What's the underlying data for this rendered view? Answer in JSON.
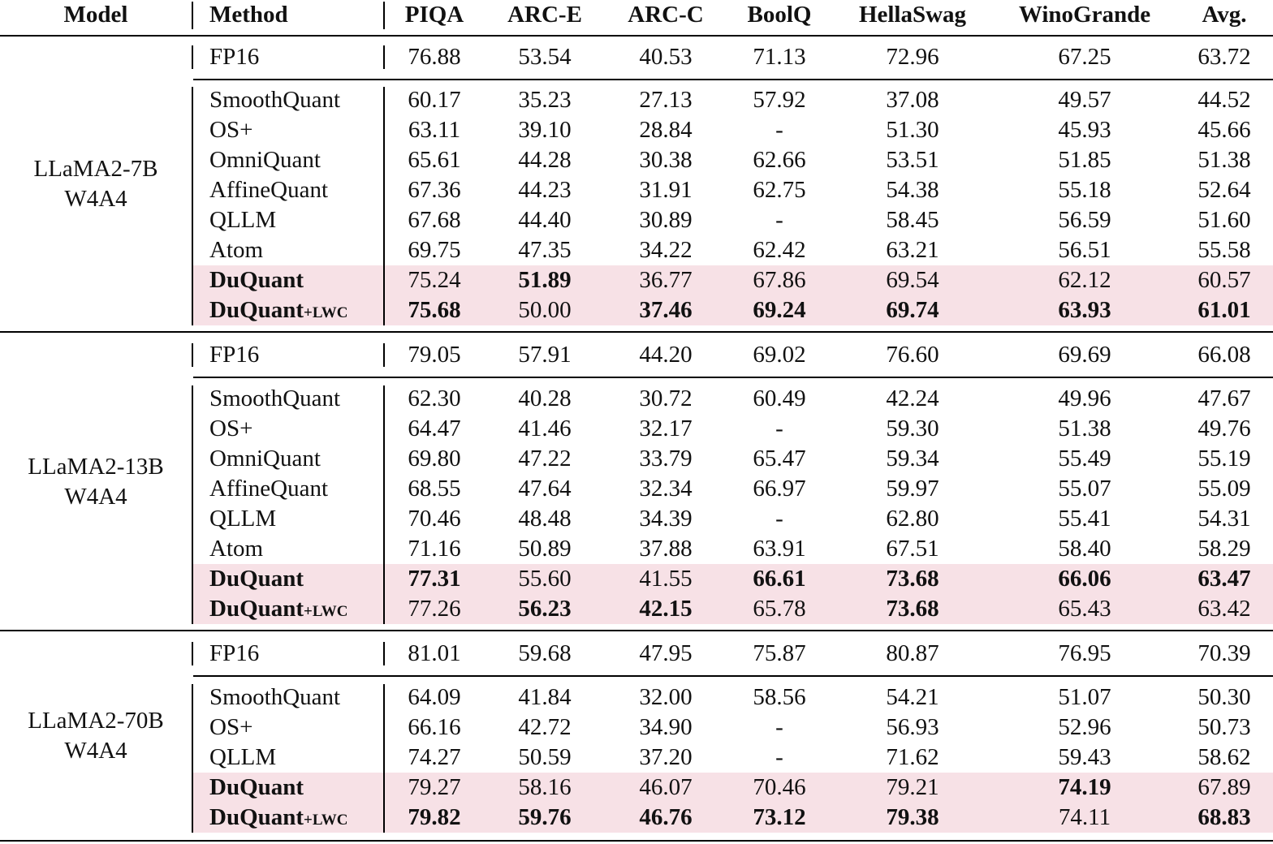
{
  "headers": [
    "Model",
    "Method",
    "PIQA",
    "ARC-E",
    "ARC-C",
    "BoolQ",
    "HellaSwag",
    "WinoGrande",
    "Avg."
  ],
  "groups": [
    {
      "model": "LLaMA2-7B",
      "bits": "W4A4",
      "fp16": {
        "method": "FP16",
        "values": [
          "76.88",
          "53.54",
          "40.53",
          "71.13",
          "72.96",
          "67.25",
          "63.72"
        ]
      },
      "rows": [
        {
          "method": "SmoothQuant",
          "values": [
            "60.17",
            "35.23",
            "27.13",
            "57.92",
            "37.08",
            "49.57",
            "44.52"
          ],
          "bold": []
        },
        {
          "method": "OS+",
          "values": [
            "63.11",
            "39.10",
            "28.84",
            "-",
            "51.30",
            "45.93",
            "45.66"
          ],
          "bold": []
        },
        {
          "method": "OmniQuant",
          "values": [
            "65.61",
            "44.28",
            "30.38",
            "62.66",
            "53.51",
            "51.85",
            "51.38"
          ],
          "bold": []
        },
        {
          "method": "AffineQuant",
          "values": [
            "67.36",
            "44.23",
            "31.91",
            "62.75",
            "54.38",
            "55.18",
            "52.64"
          ],
          "bold": []
        },
        {
          "method": "QLLM",
          "values": [
            "67.68",
            "44.40",
            "30.89",
            "-",
            "58.45",
            "56.59",
            "51.60"
          ],
          "bold": []
        },
        {
          "method": "Atom",
          "values": [
            "69.75",
            "47.35",
            "34.22",
            "62.42",
            "63.21",
            "56.51",
            "55.58"
          ],
          "bold": []
        },
        {
          "method": "DuQuant",
          "values": [
            "75.24",
            "51.89",
            "36.77",
            "67.86",
            "69.54",
            "62.12",
            "60.57"
          ],
          "bold": [
            1
          ],
          "highlight": true
        },
        {
          "method": "DuQuant",
          "sub": "+LWC",
          "values": [
            "75.68",
            "50.00",
            "37.46",
            "69.24",
            "69.74",
            "63.93",
            "61.01"
          ],
          "bold": [
            0,
            2,
            3,
            4,
            5,
            6
          ],
          "highlight": true
        }
      ]
    },
    {
      "model": "LLaMA2-13B",
      "bits": "W4A4",
      "fp16": {
        "method": "FP16",
        "values": [
          "79.05",
          "57.91",
          "44.20",
          "69.02",
          "76.60",
          "69.69",
          "66.08"
        ]
      },
      "rows": [
        {
          "method": "SmoothQuant",
          "values": [
            "62.30",
            "40.28",
            "30.72",
            "60.49",
            "42.24",
            "49.96",
            "47.67"
          ],
          "bold": []
        },
        {
          "method": "OS+",
          "values": [
            "64.47",
            "41.46",
            "32.17",
            "-",
            "59.30",
            "51.38",
            "49.76"
          ],
          "bold": []
        },
        {
          "method": "OmniQuant",
          "values": [
            "69.80",
            "47.22",
            "33.79",
            "65.47",
            "59.34",
            "55.49",
            "55.19"
          ],
          "bold": []
        },
        {
          "method": "AffineQuant",
          "values": [
            "68.55",
            "47.64",
            "32.34",
            "66.97",
            "59.97",
            "55.07",
            "55.09"
          ],
          "bold": []
        },
        {
          "method": "QLLM",
          "values": [
            "70.46",
            "48.48",
            "34.39",
            "-",
            "62.80",
            "55.41",
            "54.31"
          ],
          "bold": []
        },
        {
          "method": "Atom",
          "values": [
            "71.16",
            "50.89",
            "37.88",
            "63.91",
            "67.51",
            "58.40",
            "58.29"
          ],
          "bold": []
        },
        {
          "method": "DuQuant",
          "values": [
            "77.31",
            "55.60",
            "41.55",
            "66.61",
            "73.68",
            "66.06",
            "63.47"
          ],
          "bold": [
            0,
            3,
            4,
            5,
            6
          ],
          "highlight": true
        },
        {
          "method": "DuQuant",
          "sub": "+LWC",
          "values": [
            "77.26",
            "56.23",
            "42.15",
            "65.78",
            "73.68",
            "65.43",
            "63.42"
          ],
          "bold": [
            1,
            2,
            4
          ],
          "highlight": true
        }
      ]
    },
    {
      "model": "LLaMA2-70B",
      "bits": "W4A4",
      "fp16": {
        "method": "FP16",
        "values": [
          "81.01",
          "59.68",
          "47.95",
          "75.87",
          "80.87",
          "76.95",
          "70.39"
        ]
      },
      "rows": [
        {
          "method": "SmoothQuant",
          "values": [
            "64.09",
            "41.84",
            "32.00",
            "58.56",
            "54.21",
            "51.07",
            "50.30"
          ],
          "bold": []
        },
        {
          "method": "OS+",
          "values": [
            "66.16",
            "42.72",
            "34.90",
            "-",
            "56.93",
            "52.96",
            "50.73"
          ],
          "bold": []
        },
        {
          "method": "QLLM",
          "values": [
            "74.27",
            "50.59",
            "37.20",
            "-",
            "71.62",
            "59.43",
            "58.62"
          ],
          "bold": []
        },
        {
          "method": "DuQuant",
          "values": [
            "79.27",
            "58.16",
            "46.07",
            "70.46",
            "79.21",
            "74.19",
            "67.89"
          ],
          "bold": [
            5
          ],
          "highlight": true
        },
        {
          "method": "DuQuant",
          "sub": "+LWC",
          "values": [
            "79.82",
            "59.76",
            "46.76",
            "73.12",
            "79.38",
            "74.11",
            "68.83"
          ],
          "bold": [
            0,
            1,
            2,
            3,
            4,
            6
          ],
          "highlight": true
        }
      ]
    }
  ]
}
